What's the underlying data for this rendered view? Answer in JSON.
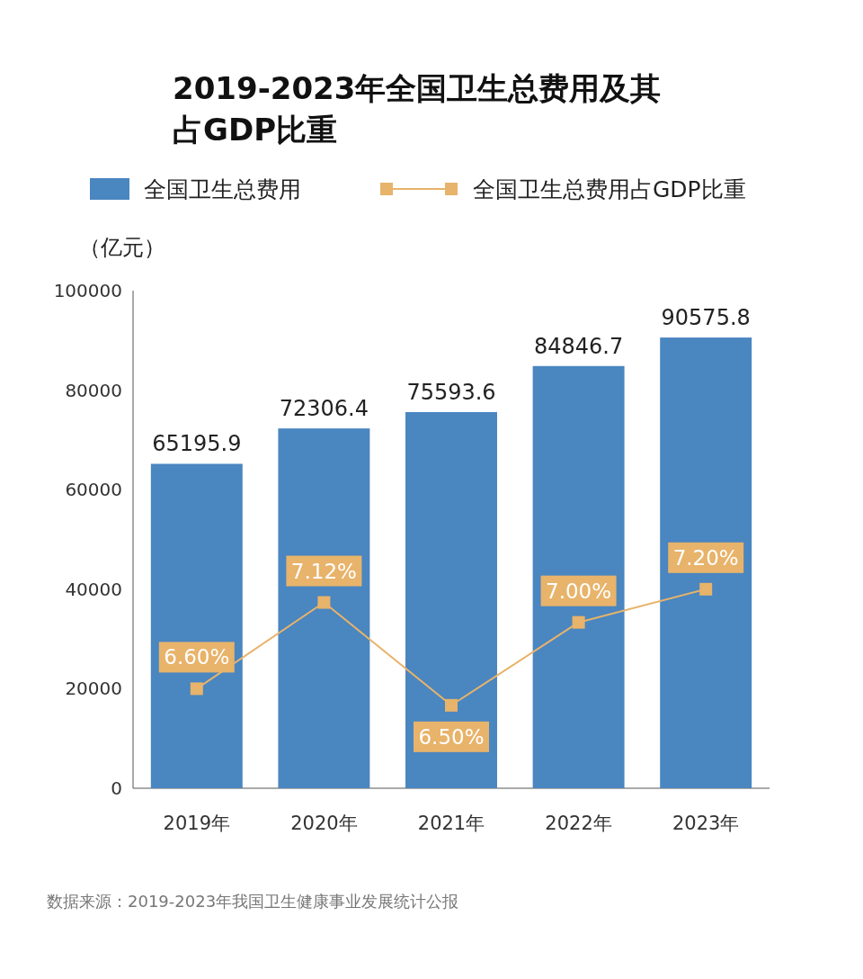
{
  "chart_data": {
    "type": "bar",
    "title": "2019-2023年全国卫生总费用及其占GDP比重",
    "ylabel": "（亿元）",
    "categories": [
      "2019年",
      "2020年",
      "2021年",
      "2022年",
      "2023年"
    ],
    "series": [
      {
        "name": "全国卫生总费用",
        "color": "#4a86c0",
        "values": [
          65195.9,
          72306.4,
          75593.6,
          84846.7,
          90575.8
        ],
        "value_labels": [
          "65195.9",
          "72306.4",
          "75593.6",
          "84846.7",
          "90575.8"
        ]
      },
      {
        "name": "全国卫生总费用占GDP比重",
        "type": "line",
        "axis": "y2",
        "color": "#e8b36a",
        "marker": "square",
        "values": [
          6.6,
          7.12,
          6.5,
          7.0,
          7.2
        ],
        "value_labels": [
          "6.60%",
          "7.12%",
          "6.50%",
          "7.00%",
          "7.20%"
        ]
      }
    ],
    "ylim": [
      0,
      100000
    ],
    "yticks": [
      0,
      20000,
      40000,
      60000,
      80000,
      100000
    ],
    "legend": "top",
    "grid": false,
    "annotations": [
      "数据来源：2019-2023年我国卫生健康事业发展统计公报"
    ]
  }
}
